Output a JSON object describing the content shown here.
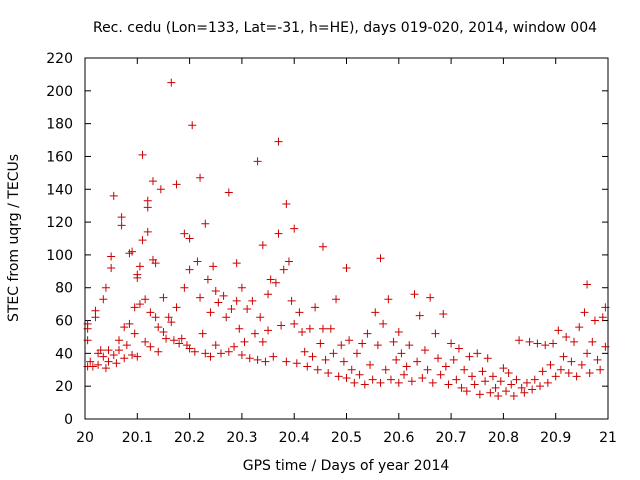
{
  "chart_data": {
    "type": "scatter",
    "title": "Rec. cedu (Lon=133, Lat=-31, h=HE), days 019-020, 2014, window 004",
    "xlabel": "GPS time / Days of year 2014",
    "ylabel": "STEC from uqrg / TECUs",
    "xlim": [
      20,
      21
    ],
    "ylim": [
      0,
      220
    ],
    "xticks": [
      20,
      20.1,
      20.2,
      20.3,
      20.4,
      20.5,
      20.6,
      20.7,
      20.8,
      20.9,
      21
    ],
    "xtick_labels": [
      "20",
      "20.1",
      "20.2",
      "20.3",
      "20.4",
      "20.5",
      "20.6",
      "20.7",
      "20.8",
      "20.9",
      "21"
    ],
    "yticks": [
      0,
      20,
      40,
      60,
      80,
      100,
      120,
      140,
      160,
      180,
      200,
      220
    ],
    "ytick_labels": [
      "0",
      "20",
      "40",
      "60",
      "80",
      "100",
      "120",
      "140",
      "160",
      "180",
      "200",
      "220"
    ],
    "marker": "+",
    "color": "#cc0000",
    "series": [
      {
        "name": "STEC",
        "points": [
          [
            20.005,
            32
          ],
          [
            20.005,
            48
          ],
          [
            20.005,
            55
          ],
          [
            20.005,
            58
          ],
          [
            20.01,
            35
          ],
          [
            20.015,
            32
          ],
          [
            20.02,
            62
          ],
          [
            20.02,
            66
          ],
          [
            20.025,
            40
          ],
          [
            20.025,
            33
          ],
          [
            20.03,
            42
          ],
          [
            20.035,
            38
          ],
          [
            20.035,
            73
          ],
          [
            20.04,
            80
          ],
          [
            20.04,
            31
          ],
          [
            20.045,
            42
          ],
          [
            20.045,
            35
          ],
          [
            20.05,
            92
          ],
          [
            20.05,
            99
          ],
          [
            20.055,
            136
          ],
          [
            20.055,
            39
          ],
          [
            20.06,
            34
          ],
          [
            20.065,
            42
          ],
          [
            20.065,
            48
          ],
          [
            20.07,
            118
          ],
          [
            20.07,
            123
          ],
          [
            20.075,
            56
          ],
          [
            20.075,
            37
          ],
          [
            20.08,
            45
          ],
          [
            20.085,
            101
          ],
          [
            20.085,
            58
          ],
          [
            20.09,
            102
          ],
          [
            20.09,
            39
          ],
          [
            20.095,
            68
          ],
          [
            20.095,
            52
          ],
          [
            20.1,
            86
          ],
          [
            20.1,
            88
          ],
          [
            20.1,
            38
          ],
          [
            20.105,
            93
          ],
          [
            20.105,
            70
          ],
          [
            20.11,
            161
          ],
          [
            20.11,
            109
          ],
          [
            20.115,
            73
          ],
          [
            20.115,
            47
          ],
          [
            20.12,
            129
          ],
          [
            20.12,
            133
          ],
          [
            20.12,
            114
          ],
          [
            20.125,
            65
          ],
          [
            20.125,
            44
          ],
          [
            20.13,
            145
          ],
          [
            20.13,
            97
          ],
          [
            20.135,
            95
          ],
          [
            20.135,
            62
          ],
          [
            20.14,
            56
          ],
          [
            20.14,
            41
          ],
          [
            20.145,
            140
          ],
          [
            20.15,
            74
          ],
          [
            20.15,
            53
          ],
          [
            20.155,
            49
          ],
          [
            20.16,
            62
          ],
          [
            20.165,
            205
          ],
          [
            20.165,
            59
          ],
          [
            20.17,
            48
          ],
          [
            20.175,
            143
          ],
          [
            20.175,
            68
          ],
          [
            20.18,
            46
          ],
          [
            20.185,
            49
          ],
          [
            20.19,
            113
          ],
          [
            20.19,
            80
          ],
          [
            20.195,
            45
          ],
          [
            20.2,
            110
          ],
          [
            20.2,
            91
          ],
          [
            20.2,
            43
          ],
          [
            20.205,
            179
          ],
          [
            20.21,
            41
          ],
          [
            20.215,
            96
          ],
          [
            20.22,
            147
          ],
          [
            20.22,
            74
          ],
          [
            20.225,
            52
          ],
          [
            20.23,
            119
          ],
          [
            20.23,
            40
          ],
          [
            20.235,
            85
          ],
          [
            20.24,
            65
          ],
          [
            20.24,
            38
          ],
          [
            20.245,
            93
          ],
          [
            20.25,
            78
          ],
          [
            20.25,
            45
          ],
          [
            20.255,
            71
          ],
          [
            20.26,
            40
          ],
          [
            20.265,
            75
          ],
          [
            20.27,
            62
          ],
          [
            20.275,
            138
          ],
          [
            20.275,
            41
          ],
          [
            20.28,
            67
          ],
          [
            20.285,
            44
          ],
          [
            20.29,
            95
          ],
          [
            20.29,
            72
          ],
          [
            20.295,
            55
          ],
          [
            20.3,
            80
          ],
          [
            20.3,
            39
          ],
          [
            20.305,
            47
          ],
          [
            20.31,
            67
          ],
          [
            20.315,
            37
          ],
          [
            20.32,
            72
          ],
          [
            20.325,
            52
          ],
          [
            20.33,
            157
          ],
          [
            20.33,
            36
          ],
          [
            20.335,
            62
          ],
          [
            20.34,
            106
          ],
          [
            20.34,
            47
          ],
          [
            20.345,
            35
          ],
          [
            20.35,
            76
          ],
          [
            20.35,
            54
          ],
          [
            20.355,
            85
          ],
          [
            20.36,
            38
          ],
          [
            20.365,
            83
          ],
          [
            20.37,
            169
          ],
          [
            20.37,
            113
          ],
          [
            20.375,
            57
          ],
          [
            20.38,
            91
          ],
          [
            20.385,
            131
          ],
          [
            20.385,
            35
          ],
          [
            20.39,
            96
          ],
          [
            20.395,
            72
          ],
          [
            20.4,
            116
          ],
          [
            20.4,
            58
          ],
          [
            20.405,
            34
          ],
          [
            20.41,
            65
          ],
          [
            20.415,
            53
          ],
          [
            20.42,
            41
          ],
          [
            20.425,
            32
          ],
          [
            20.43,
            55
          ],
          [
            20.435,
            38
          ],
          [
            20.44,
            68
          ],
          [
            20.445,
            30
          ],
          [
            20.45,
            46
          ],
          [
            20.455,
            105
          ],
          [
            20.455,
            55
          ],
          [
            20.46,
            36
          ],
          [
            20.465,
            28
          ],
          [
            20.47,
            55
          ],
          [
            20.475,
            40
          ],
          [
            20.48,
            73
          ],
          [
            20.485,
            26
          ],
          [
            20.49,
            45
          ],
          [
            20.495,
            35
          ],
          [
            20.5,
            92
          ],
          [
            20.5,
            25
          ],
          [
            20.505,
            48
          ],
          [
            20.51,
            30
          ],
          [
            20.515,
            22
          ],
          [
            20.52,
            40
          ],
          [
            20.525,
            27
          ],
          [
            20.53,
            46
          ],
          [
            20.535,
            21
          ],
          [
            20.54,
            52
          ],
          [
            20.545,
            33
          ],
          [
            20.55,
            24
          ],
          [
            20.555,
            65
          ],
          [
            20.56,
            45
          ],
          [
            20.565,
            98
          ],
          [
            20.565,
            22
          ],
          [
            20.57,
            58
          ],
          [
            20.575,
            30
          ],
          [
            20.58,
            73
          ],
          [
            20.585,
            24
          ],
          [
            20.59,
            47
          ],
          [
            20.595,
            36
          ],
          [
            20.6,
            53
          ],
          [
            20.6,
            22
          ],
          [
            20.605,
            40
          ],
          [
            20.61,
            27
          ],
          [
            20.615,
            32
          ],
          [
            20.62,
            45
          ],
          [
            20.625,
            23
          ],
          [
            20.63,
            76
          ],
          [
            20.635,
            35
          ],
          [
            20.64,
            63
          ],
          [
            20.645,
            25
          ],
          [
            20.65,
            42
          ],
          [
            20.655,
            30
          ],
          [
            20.66,
            74
          ],
          [
            20.665,
            22
          ],
          [
            20.67,
            52
          ],
          [
            20.675,
            37
          ],
          [
            20.68,
            27
          ],
          [
            20.685,
            64
          ],
          [
            20.69,
            32
          ],
          [
            20.695,
            21
          ],
          [
            20.7,
            46
          ],
          [
            20.705,
            36
          ],
          [
            20.71,
            24
          ],
          [
            20.715,
            43
          ],
          [
            20.72,
            19
          ],
          [
            20.725,
            30
          ],
          [
            20.73,
            17
          ],
          [
            20.735,
            38
          ],
          [
            20.74,
            26
          ],
          [
            20.745,
            21
          ],
          [
            20.75,
            40
          ],
          [
            20.755,
            15
          ],
          [
            20.76,
            29
          ],
          [
            20.765,
            23
          ],
          [
            20.77,
            37
          ],
          [
            20.775,
            16
          ],
          [
            20.78,
            26
          ],
          [
            20.785,
            19
          ],
          [
            20.79,
            14
          ],
          [
            20.795,
            23
          ],
          [
            20.8,
            31
          ],
          [
            20.805,
            17
          ],
          [
            20.81,
            28
          ],
          [
            20.815,
            21
          ],
          [
            20.82,
            14
          ],
          [
            20.825,
            24
          ],
          [
            20.83,
            48
          ],
          [
            20.835,
            19
          ],
          [
            20.84,
            16
          ],
          [
            20.845,
            22
          ],
          [
            20.85,
            47
          ],
          [
            20.855,
            18
          ],
          [
            20.86,
            24
          ],
          [
            20.865,
            46
          ],
          [
            20.87,
            20
          ],
          [
            20.875,
            29
          ],
          [
            20.88,
            45
          ],
          [
            20.885,
            22
          ],
          [
            20.89,
            33
          ],
          [
            20.895,
            46
          ],
          [
            20.9,
            26
          ],
          [
            20.905,
            54
          ],
          [
            20.91,
            30
          ],
          [
            20.915,
            38
          ],
          [
            20.92,
            50
          ],
          [
            20.925,
            28
          ],
          [
            20.93,
            35
          ],
          [
            20.935,
            47
          ],
          [
            20.94,
            26
          ],
          [
            20.945,
            56
          ],
          [
            20.95,
            33
          ],
          [
            20.955,
            65
          ],
          [
            20.96,
            82
          ],
          [
            20.96,
            40
          ],
          [
            20.965,
            28
          ],
          [
            20.97,
            47
          ],
          [
            20.975,
            60
          ],
          [
            20.98,
            36
          ],
          [
            20.985,
            30
          ],
          [
            20.99,
            62
          ],
          [
            20.995,
            44
          ],
          [
            20.995,
            68
          ]
        ]
      }
    ]
  }
}
